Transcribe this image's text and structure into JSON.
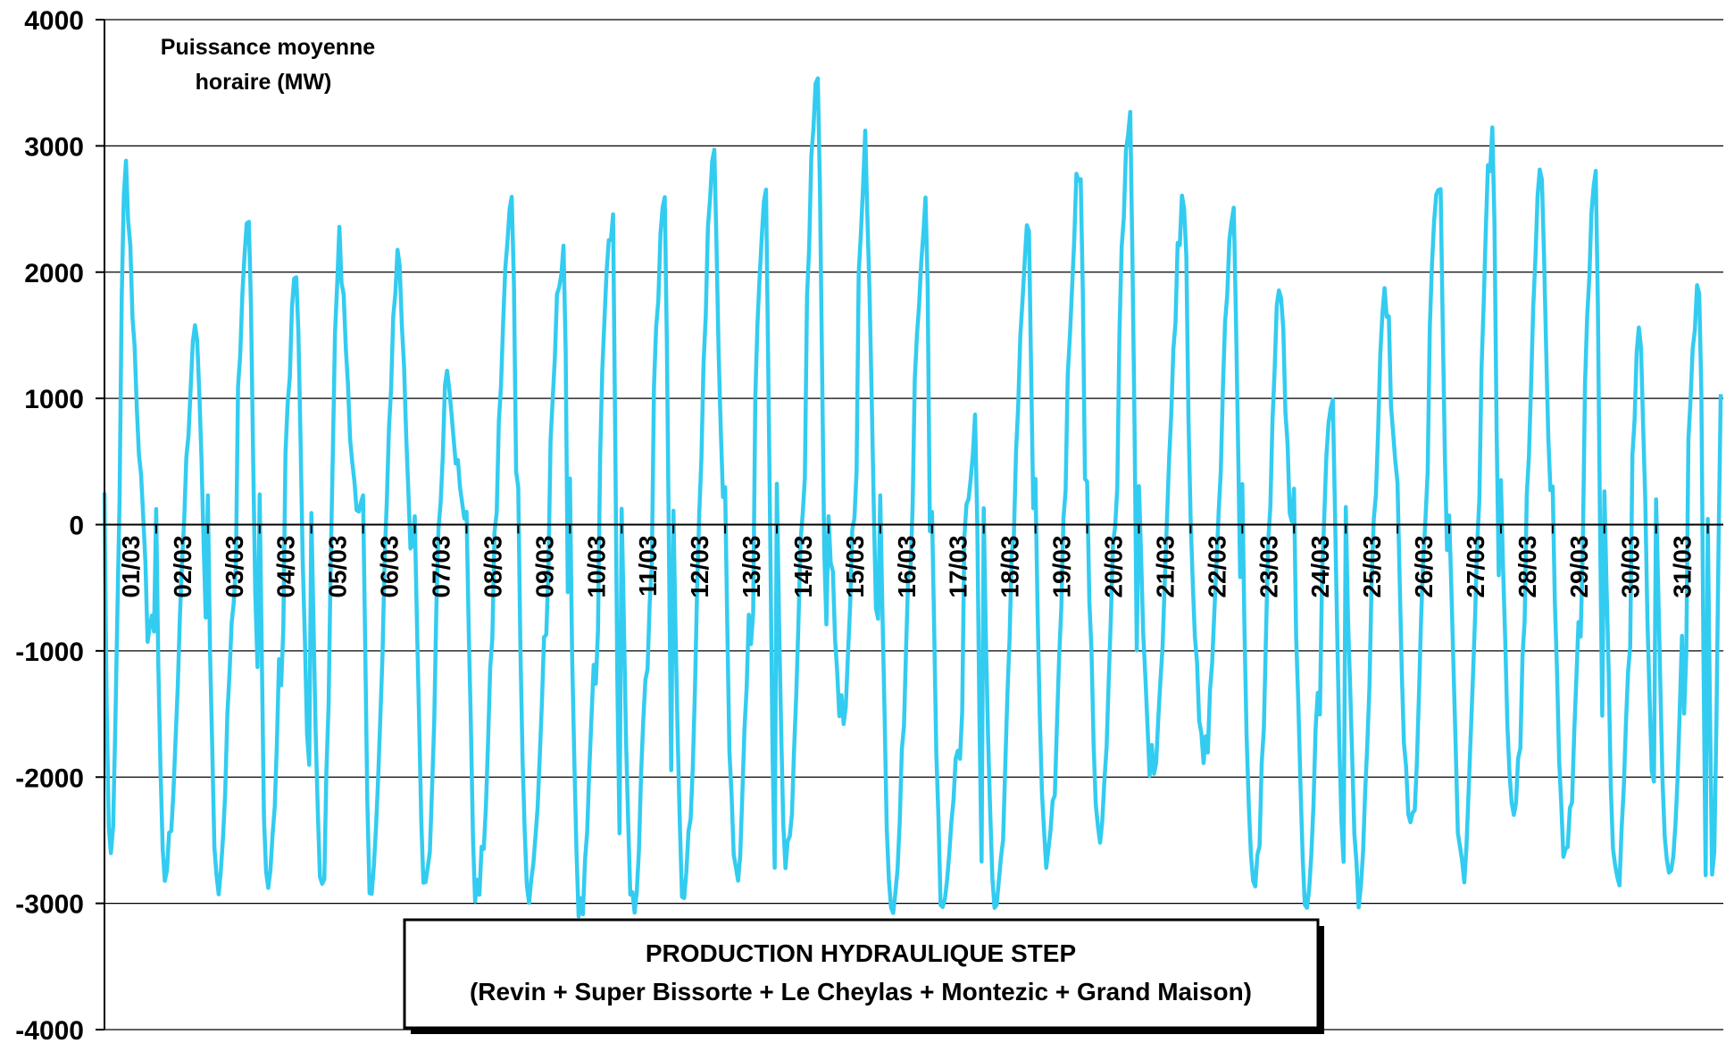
{
  "chart_data": {
    "type": "line",
    "ylabel_lines": [
      "Puissance moyenne",
      "horaire (MW)"
    ],
    "title_lines": [
      "PRODUCTION HYDRAULIQUE STEP",
      "(Revin + Super Bissorte + Le Cheylas + Montezic + Grand Maison)"
    ],
    "ylim": [
      -4000,
      4000
    ],
    "y_ticks": [
      {
        "value": 4000,
        "label": "4000"
      },
      {
        "value": 3000,
        "label": "3000"
      },
      {
        "value": 2000,
        "label": "2000"
      },
      {
        "value": 1000,
        "label": "1000"
      },
      {
        "value": 0,
        "label": "0"
      },
      {
        "value": -1000,
        "label": "-1000"
      },
      {
        "value": -2000,
        "label": "-2000"
      },
      {
        "value": -3000,
        "label": "-3000"
      },
      {
        "value": -4000,
        "label": "-4000"
      }
    ],
    "x_unit": "day of month",
    "xlim": [
      1,
      32.3
    ],
    "x_ticks": [
      "01/03",
      "02/03",
      "03/03",
      "04/03",
      "05/03",
      "06/03",
      "07/03",
      "08/03",
      "09/03",
      "10/03",
      "11/03",
      "12/03",
      "13/03",
      "14/03",
      "15/03",
      "16/03",
      "17/03",
      "18/03",
      "19/03",
      "20/03",
      "21/03",
      "22/03",
      "23/03",
      "24/03",
      "25/03",
      "26/03",
      "27/03",
      "28/03",
      "29/03",
      "30/03",
      "31/03"
    ],
    "grid": "horizontal",
    "line_color": "#33ccf0",
    "daily_profile": [
      {
        "day": 1,
        "min": -2780,
        "max": 2800,
        "min_t": 0.12,
        "max_t": 0.42,
        "dip": -800
      },
      {
        "day": 2,
        "min": -2800,
        "max": 1530,
        "min_t": 0.15,
        "max_t": 0.8,
        "dip": -600
      },
      {
        "day": 3,
        "min": -2870,
        "max": 2500,
        "min_t": 0.18,
        "max_t": 0.8,
        "dip": -1250
      },
      {
        "day": 4,
        "min": -2870,
        "max": 2000,
        "min_t": 0.15,
        "max_t": 0.72,
        "dip": -1900
      },
      {
        "day": 5,
        "min": -2920,
        "max": 2240,
        "min_t": 0.2,
        "max_t": 0.55,
        "dip": 0
      },
      {
        "day": 6,
        "min": -2850,
        "max": 2160,
        "min_t": 0.15,
        "max_t": 0.7,
        "dip": -100
      },
      {
        "day": 7,
        "min": -2950,
        "max": 1290,
        "min_t": 0.2,
        "max_t": 0.65,
        "dip": 100
      },
      {
        "day": 8,
        "min": -2950,
        "max": 2550,
        "min_t": 0.2,
        "max_t": 0.9,
        "dip": 100
      },
      {
        "day": 9,
        "min": -2950,
        "max": 2260,
        "min_t": 0.2,
        "max_t": 0.9,
        "dip": -1350
      },
      {
        "day": 10,
        "min": -3100,
        "max": 2450,
        "min_t": 0.2,
        "max_t": 0.83,
        "dip": -2500
      },
      {
        "day": 11,
        "min": -3050,
        "max": 2510,
        "min_t": 0.2,
        "max_t": 0.85,
        "dip": -1800
      },
      {
        "day": 12,
        "min": -2900,
        "max": 2930,
        "min_t": 0.2,
        "max_t": 0.8,
        "dip": 200
      },
      {
        "day": 13,
        "min": -2820,
        "max": 2580,
        "min_t": 0.2,
        "max_t": 0.8,
        "dip": -2600
      },
      {
        "day": 14,
        "min": -2680,
        "max": 3540,
        "min_t": 0.2,
        "max_t": 0.8,
        "dip": -850
      },
      {
        "day": 15,
        "min": -1560,
        "max": 3010,
        "min_t": 0.3,
        "max_t": 0.72,
        "dip": -600
      },
      {
        "day": 16,
        "min": -2960,
        "max": 2540,
        "min_t": 0.22,
        "max_t": 0.9,
        "dip": -700
      },
      {
        "day": 17,
        "min": -2950,
        "max": 730,
        "min_t": 0.2,
        "max_t": 0.85,
        "dip": -2830
      },
      {
        "day": 18,
        "min": -3030,
        "max": 2330,
        "min_t": 0.22,
        "max_t": 0.88,
        "dip": -200
      },
      {
        "day": 19,
        "min": -2750,
        "max": 2910,
        "min_t": 0.22,
        "max_t": 0.88,
        "dip": 200
      },
      {
        "day": 20,
        "min": -2420,
        "max": 3300,
        "min_t": 0.24,
        "max_t": 0.85,
        "dip": -1000
      },
      {
        "day": 21,
        "min": -1900,
        "max": 2690,
        "min_t": 0.25,
        "max_t": 0.9,
        "dip": 500
      },
      {
        "day": 22,
        "min": -1860,
        "max": 2500,
        "min_t": 0.25,
        "max_t": 0.85,
        "dip": -350
      },
      {
        "day": 23,
        "min": -2950,
        "max": 1890,
        "min_t": 0.22,
        "max_t": 0.75,
        "dip": -100
      },
      {
        "day": 24,
        "min": -2950,
        "max": 1010,
        "min_t": 0.22,
        "max_t": 0.75,
        "dip": -2750
      },
      {
        "day": 25,
        "min": -2860,
        "max": 1820,
        "min_t": 0.25,
        "max_t": 0.8,
        "dip": 400
      },
      {
        "day": 26,
        "min": -2430,
        "max": 2800,
        "min_t": 0.25,
        "max_t": 0.82,
        "dip": -200
      },
      {
        "day": 27,
        "min": -2750,
        "max": 3090,
        "min_t": 0.25,
        "max_t": 0.85,
        "dip": -450
      },
      {
        "day": 28,
        "min": -2250,
        "max": 2780,
        "min_t": 0.25,
        "max_t": 0.8,
        "dip": 400
      },
      {
        "day": 29,
        "min": -2650,
        "max": 2680,
        "min_t": 0.25,
        "max_t": 0.85,
        "dip": -1650
      },
      {
        "day": 30,
        "min": -2790,
        "max": 1660,
        "min_t": 0.25,
        "max_t": 0.7,
        "dip": -1950
      },
      {
        "day": 31,
        "min": -2790,
        "max": 2000,
        "min_t": 0.25,
        "max_t": 0.85,
        "dip": -2700
      },
      {
        "day": 32,
        "min": -2700,
        "max": 1640,
        "min_t": 0.1,
        "max_t": 0.3,
        "dip": 400
      }
    ]
  }
}
